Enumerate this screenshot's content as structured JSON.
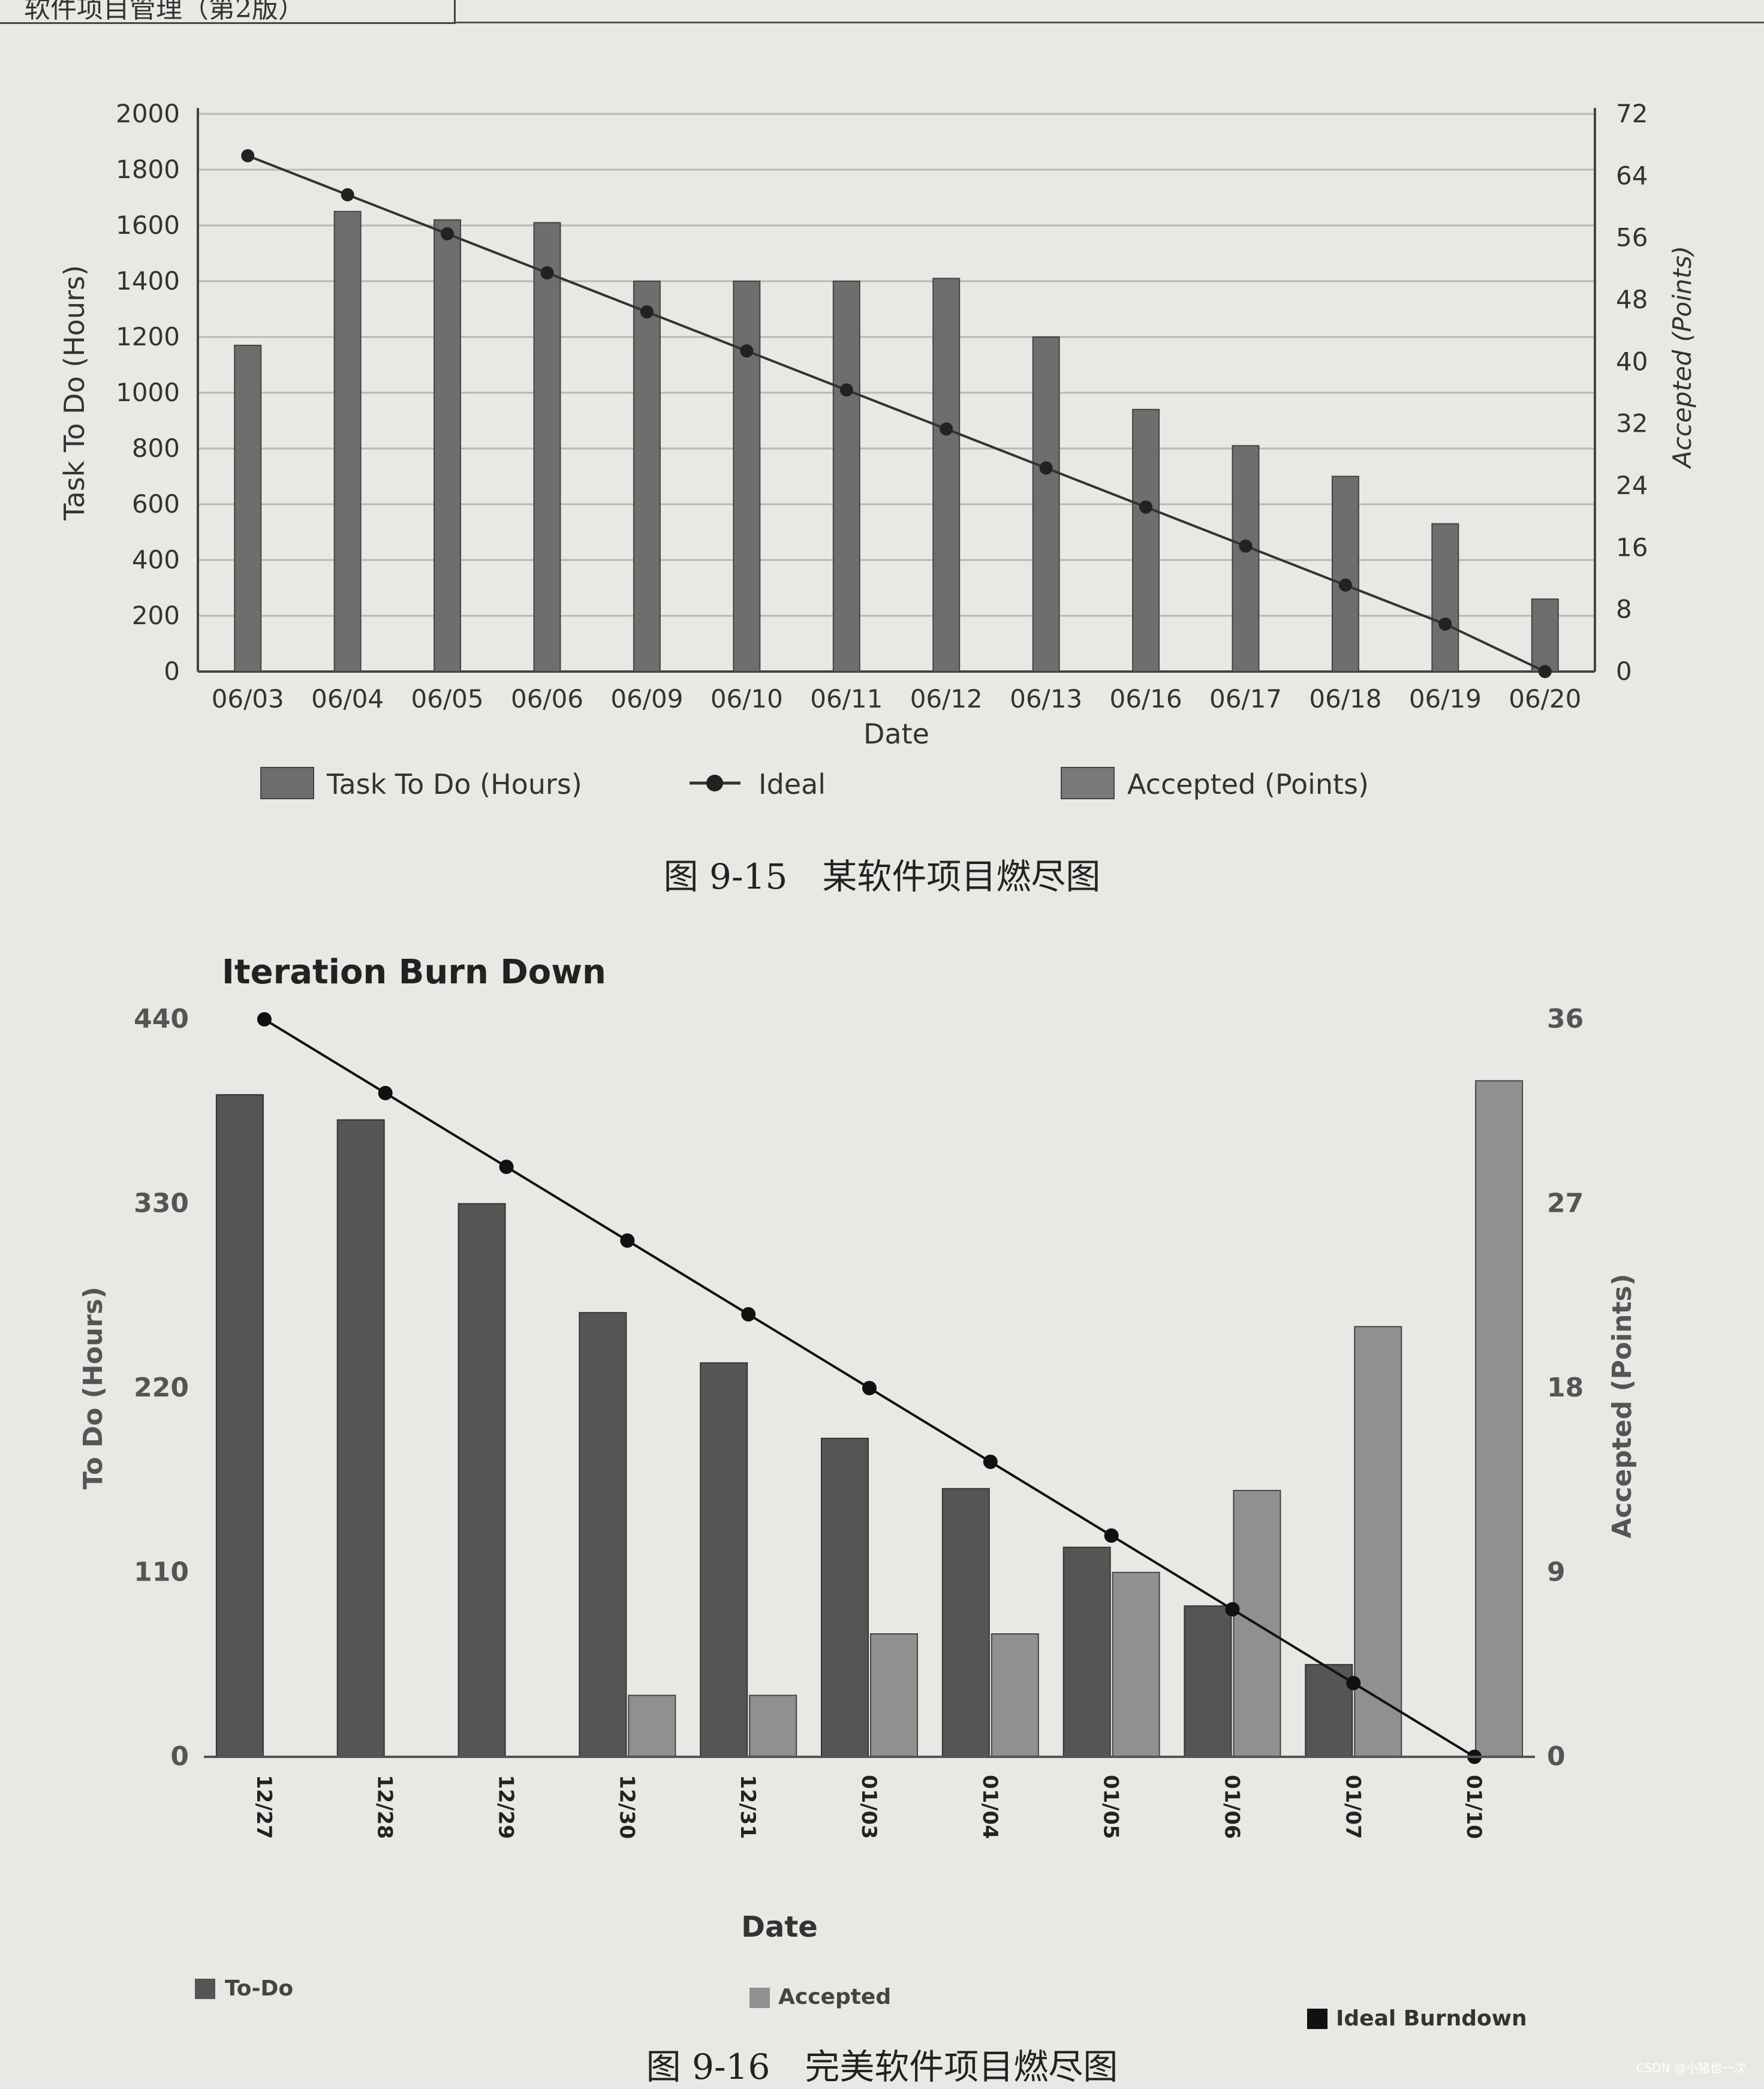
{
  "page": {
    "header_title": "软件项目管理（第2版）",
    "watermark": "CSDN @小猪也一次",
    "captions": {
      "fig1": "图 9-15　某软件项目燃尽图",
      "fig2": "图 9-16　完美软件项目燃尽图"
    }
  },
  "chart_data": [
    {
      "type": "bar",
      "title": "",
      "xlabel": "Date",
      "ylabel": "Task To Do (Hours)",
      "y2label": "Accepted (Points)",
      "ylim": [
        0,
        2000
      ],
      "y2lim": [
        0,
        72
      ],
      "yticks": [
        "0",
        "200",
        "400",
        "600",
        "800",
        "1000",
        "1200",
        "1400",
        "1600",
        "1800",
        "2000"
      ],
      "y2ticks": [
        "0",
        "8",
        "16",
        "24",
        "32",
        "40",
        "48",
        "56",
        "64",
        "72"
      ],
      "categories": [
        "06/03",
        "06/04",
        "06/05",
        "06/06",
        "06/09",
        "06/10",
        "06/11",
        "06/12",
        "06/13",
        "06/16",
        "06/17",
        "06/18",
        "06/19",
        "06/20"
      ],
      "grid": true,
      "legend_position": "bottom",
      "series": [
        {
          "name": "Task To Do (Hours)",
          "kind": "bar",
          "axis": "left",
          "color": "#6e6e6e",
          "values": [
            1170,
            1650,
            1620,
            1610,
            1400,
            1400,
            1400,
            1410,
            1200,
            940,
            810,
            700,
            530,
            260
          ]
        },
        {
          "name": "Ideal",
          "kind": "line",
          "axis": "left",
          "color": "#333333",
          "values": [
            1850,
            1710,
            1570,
            1430,
            1290,
            1150,
            1010,
            870,
            730,
            590,
            450,
            310,
            170,
            0
          ]
        },
        {
          "name": "Accepted (Points)",
          "kind": "bar",
          "axis": "right",
          "color": "#7a7a7a",
          "values": [
            0,
            0,
            0,
            0,
            0,
            0,
            0,
            0,
            0,
            0,
            0,
            0,
            0,
            0
          ]
        }
      ]
    },
    {
      "type": "bar",
      "title": "Iteration Burn Down",
      "xlabel": "Date",
      "ylabel": "To Do (Hours)",
      "y2label": "Accepted (Points)",
      "ylim": [
        0,
        440
      ],
      "y2lim": [
        0,
        36
      ],
      "yticks": [
        "0",
        "110",
        "220",
        "330",
        "440"
      ],
      "y2ticks": [
        "0",
        "9",
        "18",
        "27",
        "36"
      ],
      "categories": [
        "12/27",
        "12/28",
        "12/29",
        "12/30",
        "12/31",
        "01/03",
        "01/04",
        "01/05",
        "01/06",
        "01/07",
        "01/10"
      ],
      "grid": false,
      "legend_position": "bottom",
      "series": [
        {
          "name": "To-Do",
          "kind": "bar",
          "axis": "left",
          "color": "#555555",
          "values": [
            395,
            380,
            330,
            265,
            235,
            190,
            160,
            125,
            90,
            55,
            0
          ]
        },
        {
          "name": "Accepted",
          "kind": "bar",
          "axis": "right",
          "color": "#909090",
          "values": [
            0,
            0,
            0,
            3,
            3,
            6,
            6,
            9,
            13,
            21,
            33
          ]
        },
        {
          "name": "Ideal Burndown",
          "kind": "line",
          "axis": "left",
          "color": "#111111",
          "values": [
            440,
            396,
            352,
            308,
            264,
            220,
            176,
            132,
            88,
            44,
            0
          ]
        }
      ]
    }
  ]
}
